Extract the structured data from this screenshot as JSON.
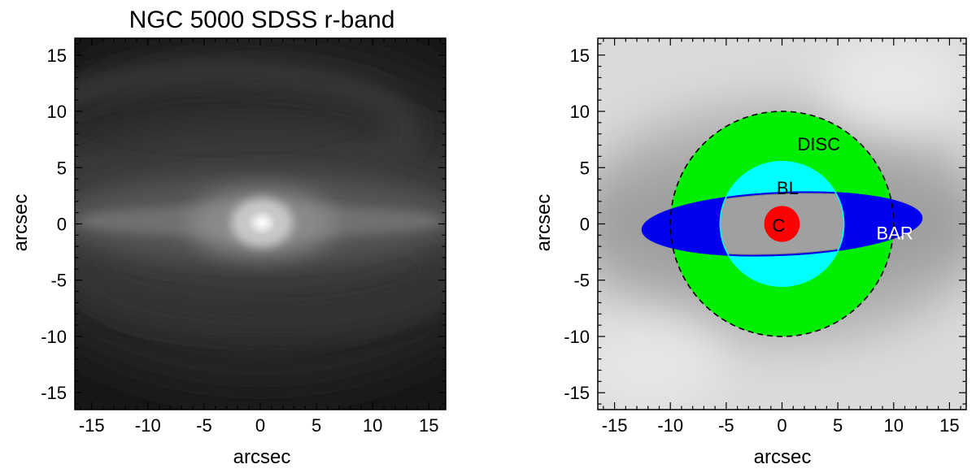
{
  "left_panel": {
    "title": "NGC 5000  SDSS r-band",
    "xlabel": "arcsec",
    "ylabel": "arcsec",
    "xlim": [
      -16.5,
      16.5
    ],
    "ylim": [
      -16.5,
      16.5
    ],
    "major_ticks": [
      -15,
      -10,
      -5,
      0,
      5,
      10,
      15
    ],
    "tick_labels": [
      "-15",
      "-10",
      "-5",
      "0",
      "5",
      "10",
      "15"
    ]
  },
  "right_panel": {
    "xlabel": "arcsec",
    "ylabel": "arcsec",
    "xlim": [
      -16.5,
      16.5
    ],
    "ylim": [
      -16.5,
      16.5
    ],
    "major_ticks": [
      -15,
      -10,
      -5,
      0,
      5,
      10,
      15
    ],
    "tick_labels": [
      "-15",
      "-10",
      "-5",
      "0",
      "5",
      "10",
      "15"
    ],
    "components": [
      {
        "label": "DISC",
        "shape": "circle",
        "center": [
          0,
          0
        ],
        "radius": 10,
        "color": "#00ee00",
        "edge": "dashed black"
      },
      {
        "label": "BL",
        "shape": "circle",
        "center": [
          0,
          0
        ],
        "radius": 5.6,
        "color": "#00ffff"
      },
      {
        "label": "BAR",
        "shape": "ellipse",
        "center": [
          0,
          0
        ],
        "semi_major": 12.6,
        "semi_minor": 2.85,
        "pa_deg": 2.5,
        "color": "#0000ee"
      },
      {
        "label": "C",
        "shape": "circle",
        "center": [
          0,
          0
        ],
        "radius": 1.6,
        "color": "#ff0000"
      }
    ],
    "label_positions": {
      "DISC": [
        3.3,
        7.1
      ],
      "BL": [
        0.5,
        3.2
      ],
      "BAR": [
        10.1,
        -0.8
      ],
      "C": [
        -0.3,
        -0.1
      ]
    }
  },
  "colors": {
    "disc": "#00ee00",
    "bl": "#00ffff",
    "bar": "#0000ee",
    "c": "#ff0000"
  }
}
